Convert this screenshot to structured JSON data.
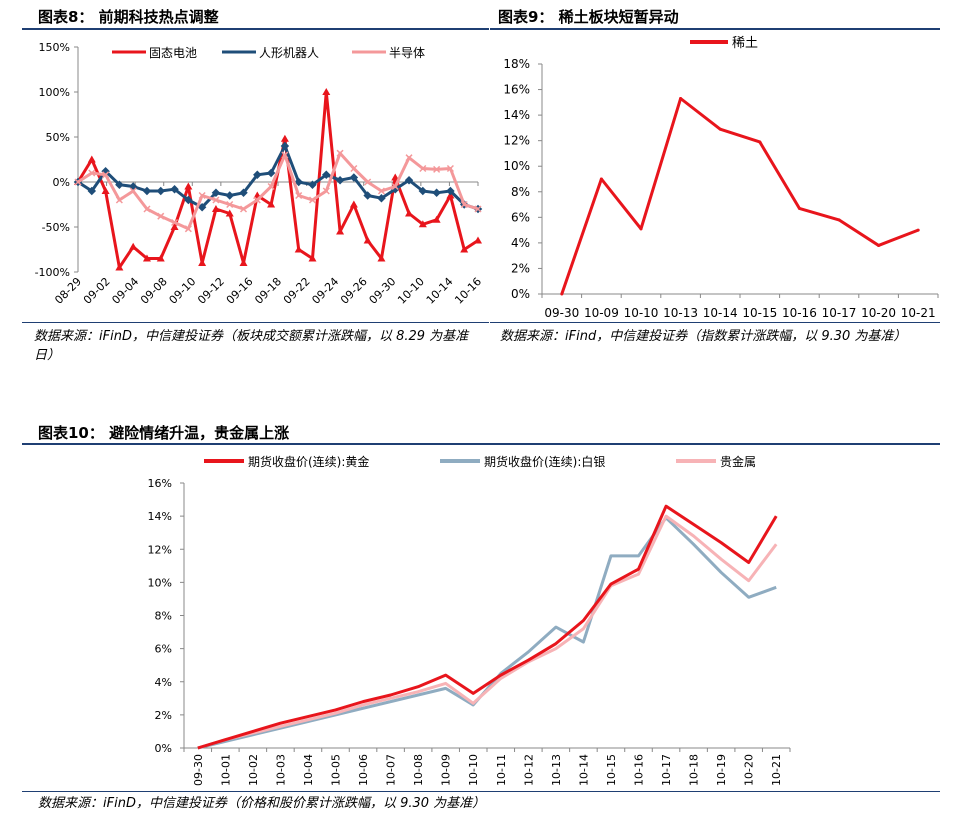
{
  "panels": {
    "chart8": {
      "title": "图表8：   前期科技热点调整",
      "source": "数据来源：iFinD，中信建投证券（板块成交额累计涨跌幅，以 8.29 为基准日）"
    },
    "chart9": {
      "title": "图表9：   稀土板块短暂异动",
      "source": "数据来源：iFind，中信建投证券（指数累计涨跌幅，以 9.30 为基准）"
    },
    "chart10": {
      "title": "图表10：  避险情绪升温，贵金属上涨",
      "source": "数据来源：iFinD，中信建投证券（价格和股价累计涨跌幅，以 9.30 为基准）"
    }
  },
  "colors": {
    "red": "#e8151c",
    "navy": "#1f4e79",
    "pink": "#f4989a",
    "steel": "#8facc1",
    "rose": "#f7b3b6",
    "rule": "#1f3f73"
  },
  "chart_data": [
    {
      "id": "chart8",
      "type": "line",
      "title": "前期科技热点调整",
      "ylim": [
        -100,
        150
      ],
      "yticks": [
        -100,
        -50,
        0,
        50,
        100,
        150
      ],
      "ytick_labels": [
        "-100%",
        "-50%",
        "0%",
        "50%",
        "100%",
        "150%"
      ],
      "xtick_labels": [
        "08-29",
        "09-02",
        "09-04",
        "09-08",
        "09-10",
        "09-12",
        "09-16",
        "09-18",
        "09-22",
        "09-24",
        "09-26",
        "09-30",
        "10-10",
        "10-14",
        "10-16"
      ],
      "series": [
        {
          "name": "固态电池",
          "color": "#e8151c",
          "values": [
            0,
            25,
            -10,
            -95,
            -72,
            -85,
            -85,
            -50,
            -5,
            -90,
            -30,
            -35,
            -90,
            -15,
            -25,
            48,
            -75,
            -85,
            100,
            -55,
            -25,
            -65,
            -85,
            5,
            -35,
            -47,
            -42,
            -15,
            -75,
            -65
          ]
        },
        {
          "name": "人形机器人",
          "color": "#1f4e79",
          "values": [
            0,
            -10,
            12,
            -3,
            -5,
            -10,
            -10,
            -8,
            -20,
            -28,
            -12,
            -15,
            -12,
            8,
            10,
            40,
            0,
            -3,
            8,
            2,
            5,
            -15,
            -18,
            -8,
            2,
            -10,
            -12,
            -10,
            -25,
            -30
          ]
        },
        {
          "name": "半导体",
          "color": "#f4989a",
          "values": [
            0,
            10,
            8,
            -20,
            -10,
            -30,
            -38,
            -45,
            -52,
            -15,
            -20,
            -25,
            -30,
            -20,
            -5,
            30,
            -15,
            -20,
            -10,
            32,
            15,
            0,
            -10,
            -5,
            27,
            15,
            14,
            15,
            -25,
            -30
          ]
        }
      ]
    },
    {
      "id": "chart9",
      "type": "line",
      "title": "稀土板块短暂异动",
      "ylim": [
        0,
        18
      ],
      "yticks": [
        0,
        2,
        4,
        6,
        8,
        10,
        12,
        14,
        16,
        18
      ],
      "ytick_labels": [
        "0%",
        "2%",
        "4%",
        "6%",
        "8%",
        "10%",
        "12%",
        "14%",
        "16%",
        "18%"
      ],
      "categories": [
        "09-30",
        "10-09",
        "10-10",
        "10-13",
        "10-14",
        "10-15",
        "10-16",
        "10-17",
        "10-20",
        "10-21"
      ],
      "series": [
        {
          "name": "稀土",
          "color": "#e8151c",
          "values": [
            0,
            9.0,
            5.1,
            15.3,
            12.9,
            11.9,
            6.7,
            5.8,
            3.8,
            5.0
          ]
        }
      ]
    },
    {
      "id": "chart10",
      "type": "line",
      "title": "避险情绪升温，贵金属上涨",
      "ylim": [
        0,
        16
      ],
      "yticks": [
        0,
        2,
        4,
        6,
        8,
        10,
        12,
        14,
        16
      ],
      "ytick_labels": [
        "0%",
        "2%",
        "4%",
        "6%",
        "8%",
        "10%",
        "12%",
        "14%",
        "16%"
      ],
      "categories": [
        "09-30",
        "10-01",
        "10-02",
        "10-03",
        "10-04",
        "10-05",
        "10-06",
        "10-07",
        "10-08",
        "10-09",
        "10-10",
        "10-11",
        "10-12",
        "10-13",
        "10-14",
        "10-15",
        "10-16",
        "10-17",
        "10-18",
        "10-19",
        "10-20",
        "10-21"
      ],
      "series": [
        {
          "name": "期货收盘价(连续):黄金",
          "color": "#e8151c",
          "width": 3,
          "values": [
            0,
            0.5,
            1.0,
            1.5,
            1.9,
            2.3,
            2.8,
            3.2,
            3.7,
            4.4,
            3.3,
            4.4,
            5.3,
            6.3,
            7.7,
            9.9,
            10.8,
            14.6,
            13.5,
            12.4,
            11.2,
            14.0
          ]
        },
        {
          "name": "期货收盘价(连续):白银",
          "color": "#8facc1",
          "width": 3,
          "values": [
            0,
            0.4,
            0.8,
            1.2,
            1.6,
            2.0,
            2.4,
            2.8,
            3.2,
            3.6,
            2.6,
            4.5,
            5.8,
            7.3,
            6.4,
            11.6,
            11.6,
            13.9,
            12.3,
            10.6,
            9.1,
            9.7
          ]
        },
        {
          "name": "贵金属",
          "color": "#f7b3b6",
          "width": 3,
          "values": [
            0,
            0.5,
            0.9,
            1.3,
            1.7,
            2.1,
            2.6,
            3.0,
            3.4,
            3.9,
            2.7,
            4.2,
            5.2,
            6.0,
            7.2,
            9.8,
            10.5,
            14.0,
            12.8,
            11.4,
            10.1,
            12.3
          ]
        }
      ]
    }
  ]
}
